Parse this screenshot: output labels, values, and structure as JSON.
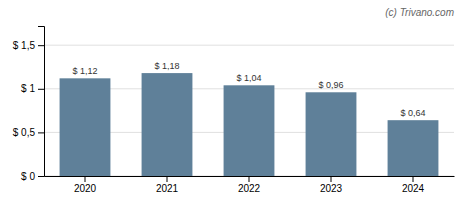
{
  "chart_data": {
    "type": "bar",
    "categories": [
      "2020",
      "2021",
      "2022",
      "2023",
      "2024"
    ],
    "values": [
      1.12,
      1.18,
      1.04,
      0.96,
      0.64
    ],
    "value_labels": [
      "$ 1,12",
      "$ 1,18",
      "$ 1,04",
      "$ 0,96",
      "$ 0,64"
    ],
    "data_labels": true,
    "color": "#5f8099",
    "ylim": [
      0,
      1.72
    ],
    "yticks": [
      {
        "value": 0,
        "label": "$ 0"
      },
      {
        "value": 0.5,
        "label": "$ 0,5"
      },
      {
        "value": 1.0,
        "label": "$ 1"
      },
      {
        "value": 1.5,
        "label": "$ 1,5"
      }
    ],
    "grid": true,
    "annotations": [
      "(c) Trivano.com"
    ]
  }
}
